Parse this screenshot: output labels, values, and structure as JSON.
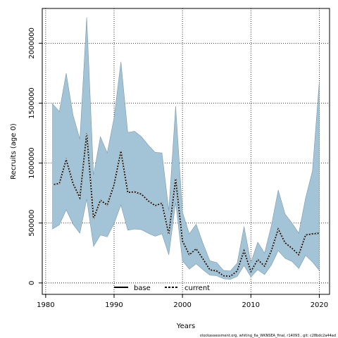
{
  "chart_data": {
    "type": "area",
    "xlabel": "Years",
    "ylabel": "Recruits (age 0)",
    "xlim": [
      1979.5,
      2021.5
    ],
    "ylim": [
      -95000,
      2290000
    ],
    "x_ticks": [
      1980,
      1990,
      2000,
      2010,
      2020
    ],
    "y_ticks": [
      0,
      500000,
      1000000,
      1500000,
      2000000
    ],
    "grid": true,
    "legend_position": "bottom-center",
    "legend": [
      {
        "label": "base",
        "style": "solid"
      },
      {
        "label": "current",
        "style": "dashed"
      }
    ],
    "colors": {
      "band": "#a3c4d6",
      "band_edge": "#7a99ad",
      "line": "#000000"
    },
    "footnote": "stockassessment.org, whiting_6a_WKNSEA_final, r14093 , git: c28bdc2a44ad",
    "years": [
      1981,
      1982,
      1983,
      1984,
      1985,
      1986,
      1987,
      1988,
      1989,
      1990,
      1991,
      1992,
      1993,
      1994,
      1995,
      1996,
      1997,
      1998,
      1999,
      2000,
      2001,
      2002,
      2003,
      2004,
      2005,
      2006,
      2007,
      2008,
      2009,
      2010,
      2011,
      2012,
      2013,
      2014,
      2015,
      2016,
      2017,
      2018,
      2019,
      2020
    ],
    "band_upper": [
      1495000,
      1430000,
      1750000,
      1400000,
      1200000,
      2215000,
      900000,
      1220000,
      1085000,
      1380000,
      1845000,
      1255000,
      1265000,
      1220000,
      1150000,
      1090000,
      1085000,
      605000,
      1475000,
      590000,
      410000,
      490000,
      330000,
      185000,
      170000,
      105000,
      100000,
      165000,
      470000,
      170000,
      340000,
      250000,
      480000,
      775000,
      575000,
      500000,
      415000,
      710000,
      935000,
      1680000
    ],
    "band_lower": [
      450000,
      485000,
      610000,
      490000,
      415000,
      700000,
      305000,
      400000,
      385000,
      495000,
      650000,
      440000,
      450000,
      445000,
      415000,
      390000,
      410000,
      235000,
      670000,
      185000,
      115000,
      160000,
      110000,
      65000,
      60000,
      35000,
      30000,
      55000,
      145000,
      50000,
      110000,
      70000,
      150000,
      270000,
      205000,
      180000,
      120000,
      230000,
      175000,
      105000
    ],
    "series": [
      {
        "name": "base",
        "values": [
          820000,
          830000,
          1030000,
          830000,
          710000,
          1250000,
          535000,
          690000,
          650000,
          820000,
          1100000,
          755000,
          760000,
          740000,
          685000,
          645000,
          665000,
          405000,
          870000,
          350000,
          235000,
          285000,
          200000,
          110000,
          100000,
          60000,
          55000,
          100000,
          270000,
          95000,
          195000,
          140000,
          270000,
          450000,
          335000,
          290000,
          235000,
          400000,
          410000,
          415000
        ]
      },
      {
        "name": "current",
        "values": [
          820000,
          830000,
          1030000,
          830000,
          710000,
          1250000,
          535000,
          690000,
          650000,
          820000,
          1100000,
          755000,
          760000,
          740000,
          685000,
          645000,
          665000,
          405000,
          870000,
          350000,
          235000,
          285000,
          200000,
          110000,
          100000,
          60000,
          55000,
          100000,
          270000,
          95000,
          195000,
          140000,
          270000,
          450000,
          335000,
          290000,
          235000,
          400000,
          410000,
          415000
        ]
      }
    ]
  }
}
